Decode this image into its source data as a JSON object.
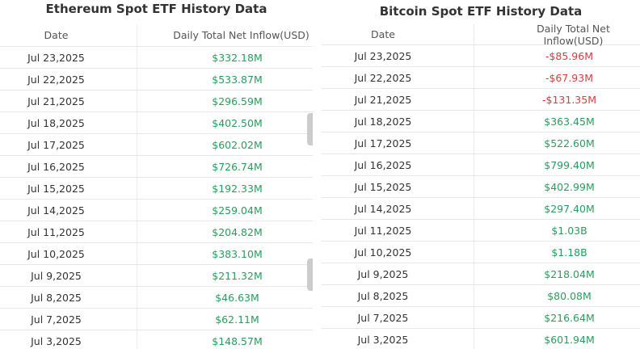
{
  "colors": {
    "positive": "#2a9d5c",
    "negative": "#e0393e"
  },
  "ethereum": {
    "title": "Ethereum Spot ETF History Data",
    "col_date": "Date",
    "col_inflow": "Daily Total Net Inflow(USD)",
    "rows": [
      {
        "date": "Jul 23,2025",
        "value": "$332.18M"
      },
      {
        "date": "Jul 22,2025",
        "value": "$533.87M"
      },
      {
        "date": "Jul 21,2025",
        "value": "$296.59M"
      },
      {
        "date": "Jul 18,2025",
        "value": "$402.50M"
      },
      {
        "date": "Jul 17,2025",
        "value": "$602.02M"
      },
      {
        "date": "Jul 16,2025",
        "value": "$726.74M"
      },
      {
        "date": "Jul 15,2025",
        "value": "$192.33M"
      },
      {
        "date": "Jul 14,2025",
        "value": "$259.04M"
      },
      {
        "date": "Jul 11,2025",
        "value": "$204.82M"
      },
      {
        "date": "Jul 10,2025",
        "value": "$383.10M"
      },
      {
        "date": "Jul 9,2025",
        "value": "$211.32M"
      },
      {
        "date": "Jul 8,2025",
        "value": "$46.63M"
      },
      {
        "date": "Jul 7,2025",
        "value": "$62.11M"
      },
      {
        "date": "Jul 3,2025",
        "value": "$148.57M"
      }
    ]
  },
  "bitcoin": {
    "title": "Bitcoin Spot ETF History Data",
    "col_date": "Date",
    "col_inflow": "Daily Total Net Inflow(USD)",
    "rows": [
      {
        "date": "Jul 23,2025",
        "value": "-$85.96M"
      },
      {
        "date": "Jul 22,2025",
        "value": "-$67.93M"
      },
      {
        "date": "Jul 21,2025",
        "value": "-$131.35M"
      },
      {
        "date": "Jul 18,2025",
        "value": "$363.45M"
      },
      {
        "date": "Jul 17,2025",
        "value": "$522.60M"
      },
      {
        "date": "Jul 16,2025",
        "value": "$799.40M"
      },
      {
        "date": "Jul 15,2025",
        "value": "$402.99M"
      },
      {
        "date": "Jul 14,2025",
        "value": "$297.40M"
      },
      {
        "date": "Jul 11,2025",
        "value": "$1.03B"
      },
      {
        "date": "Jul 10,2025",
        "value": "$1.18B"
      },
      {
        "date": "Jul 9,2025",
        "value": "$218.04M"
      },
      {
        "date": "Jul 8,2025",
        "value": "$80.08M"
      },
      {
        "date": "Jul 7,2025",
        "value": "$216.64M"
      },
      {
        "date": "Jul 3,2025",
        "value": "$601.94M"
      }
    ]
  }
}
